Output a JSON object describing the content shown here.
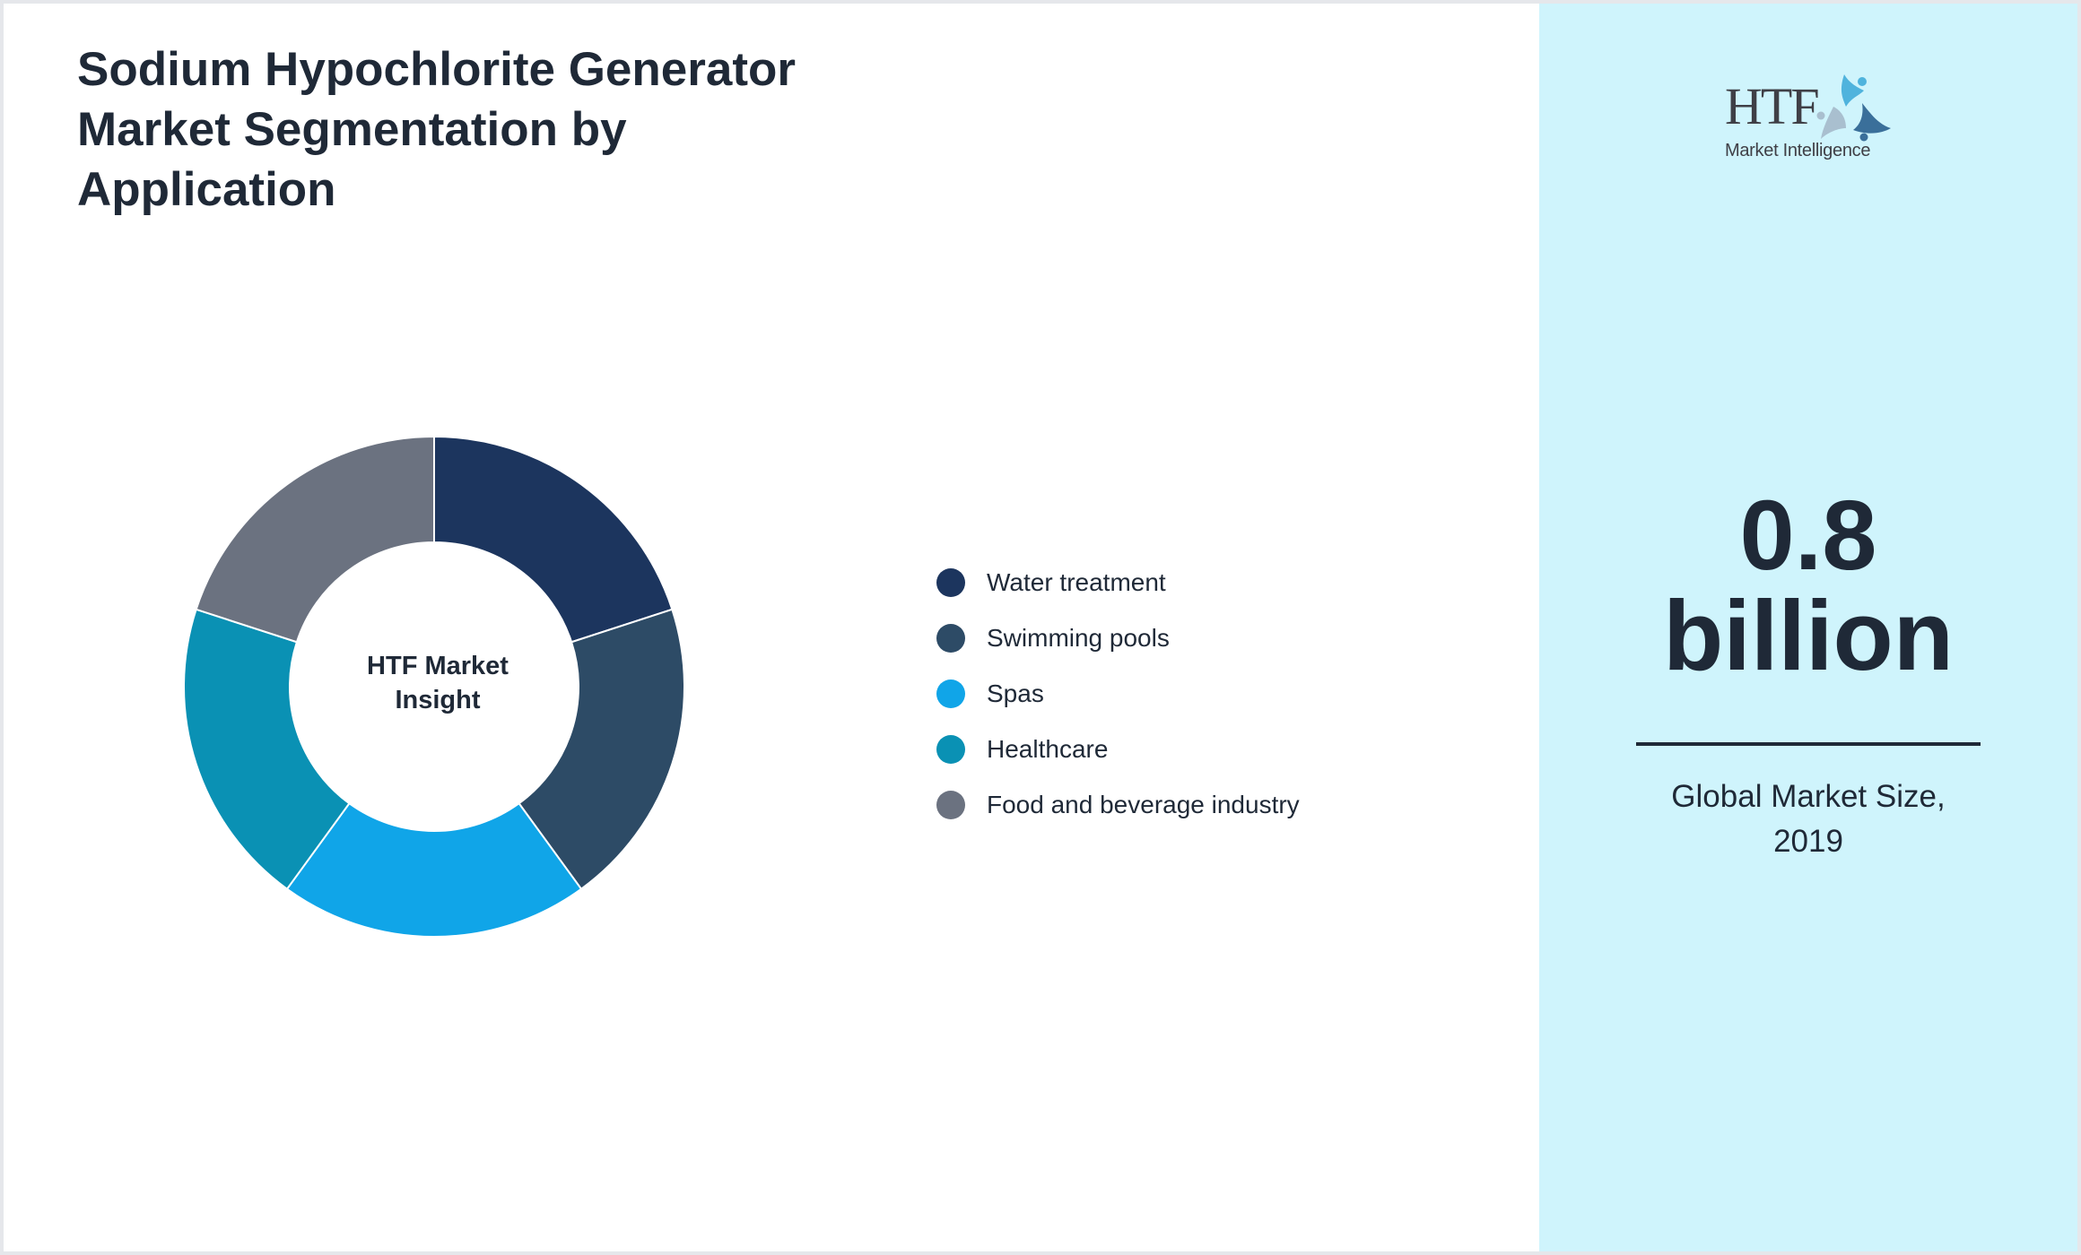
{
  "title": "Sodium Hypochlorite Generator Market Segmentation by Application",
  "donut": {
    "center_label": "HTF Market Insight"
  },
  "legend": [
    {
      "label": "Water treatment",
      "color": "#1c355e"
    },
    {
      "label": "Swimming pools",
      "color": "#2d4b66"
    },
    {
      "label": "Spas",
      "color": "#10a5e8"
    },
    {
      "label": "Healthcare",
      "color": "#0a91b4"
    },
    {
      "label": "Food and beverage industry",
      "color": "#6b7280"
    }
  ],
  "side_panel": {
    "logo": {
      "brand": "HTF",
      "tagline": "Market Intelligence"
    },
    "value": "0.8 billion",
    "caption": "Global Market Size, 2019",
    "background": "#cff4fc"
  },
  "chart_data": {
    "type": "pie",
    "subtype": "donut",
    "title": "Sodium Hypochlorite Generator Market Segmentation by Application",
    "center_label": "HTF Market Insight",
    "categories": [
      "Water treatment",
      "Swimming pools",
      "Spas",
      "Healthcare",
      "Food and beverage industry"
    ],
    "values": [
      20,
      20,
      20,
      20,
      20
    ],
    "colors": [
      "#1c355e",
      "#2d4b66",
      "#10a5e8",
      "#0a91b4",
      "#6b7280"
    ],
    "start_angle_deg": 0,
    "direction": "clockwise",
    "legend_position": "right",
    "annotation": {
      "value": "0.8 billion",
      "label": "Global Market Size, 2019"
    }
  }
}
